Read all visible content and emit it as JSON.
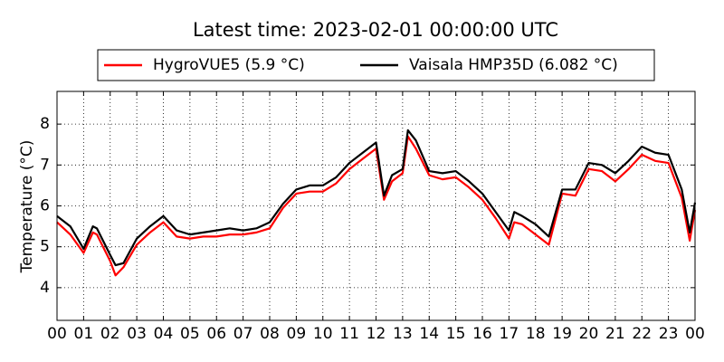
{
  "chart_data": {
    "type": "line",
    "title": "Latest time: 2023-02-01 00:00:00 UTC",
    "y_label": "Temperature (°C)",
    "x": [
      0,
      0.5,
      1,
      1.35,
      1.5,
      2,
      2.2,
      2.5,
      3,
      3.5,
      4,
      4.5,
      5,
      5.5,
      6,
      6.5,
      7,
      7.5,
      8,
      8.5,
      9,
      9.5,
      10,
      10.5,
      11,
      11.5,
      12,
      12.3,
      12.6,
      13,
      13.2,
      13.5,
      14,
      14.5,
      15,
      15.5,
      16,
      16.5,
      17,
      17.2,
      17.5,
      18,
      18.5,
      19,
      19.5,
      20,
      20.5,
      21,
      21.5,
      22,
      22.5,
      23,
      23.5,
      23.8,
      24
    ],
    "series": [
      {
        "name": "HygroVUE5 (5.9 °C)",
        "color": "#ff0000",
        "values": [
          5.6,
          5.3,
          4.85,
          5.35,
          5.3,
          4.65,
          4.3,
          4.5,
          5.05,
          5.35,
          5.6,
          5.25,
          5.2,
          5.25,
          5.25,
          5.3,
          5.3,
          5.35,
          5.45,
          5.95,
          6.3,
          6.35,
          6.35,
          6.55,
          6.9,
          7.15,
          7.4,
          6.15,
          6.6,
          6.8,
          7.7,
          7.4,
          6.75,
          6.65,
          6.7,
          6.45,
          6.15,
          5.7,
          5.2,
          5.6,
          5.55,
          5.3,
          5.05,
          6.3,
          6.25,
          6.9,
          6.85,
          6.6,
          6.9,
          7.25,
          7.1,
          7.05,
          6.2,
          5.15,
          5.9
        ]
      },
      {
        "name": "Vaisala HMP35D (6.082 °C)",
        "color": "#000000",
        "values": [
          5.75,
          5.5,
          4.95,
          5.5,
          5.45,
          4.8,
          4.55,
          4.6,
          5.2,
          5.5,
          5.75,
          5.4,
          5.3,
          5.35,
          5.4,
          5.45,
          5.4,
          5.45,
          5.6,
          6.05,
          6.4,
          6.5,
          6.5,
          6.7,
          7.05,
          7.3,
          7.55,
          6.25,
          6.75,
          6.9,
          7.85,
          7.6,
          6.85,
          6.8,
          6.85,
          6.6,
          6.3,
          5.85,
          5.4,
          5.85,
          5.75,
          5.55,
          5.25,
          6.4,
          6.4,
          7.05,
          7.0,
          6.8,
          7.1,
          7.45,
          7.3,
          7.25,
          6.4,
          5.35,
          6.082
        ]
      }
    ],
    "xlim": [
      0,
      24
    ],
    "ylim": [
      3.2,
      8.8
    ],
    "xticks": [
      {
        "value": 0,
        "label": "00"
      },
      {
        "value": 1,
        "label": "01"
      },
      {
        "value": 2,
        "label": "02"
      },
      {
        "value": 3,
        "label": "03"
      },
      {
        "value": 4,
        "label": "04"
      },
      {
        "value": 5,
        "label": "05"
      },
      {
        "value": 6,
        "label": "06"
      },
      {
        "value": 7,
        "label": "07"
      },
      {
        "value": 8,
        "label": "08"
      },
      {
        "value": 9,
        "label": "09"
      },
      10,
      11,
      12,
      13,
      14,
      15,
      16,
      17,
      18,
      19,
      20,
      21,
      22,
      23,
      {
        "value": 24,
        "label": "00"
      }
    ],
    "yticks": [
      4,
      5,
      6,
      7,
      8
    ],
    "grid": true
  }
}
